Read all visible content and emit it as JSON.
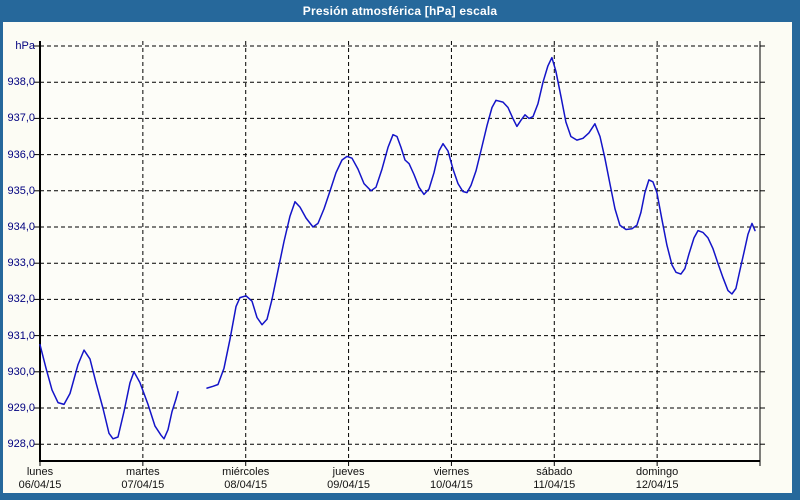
{
  "window": {
    "title": "Presión atmosférica [hPa] escala"
  },
  "colors": {
    "titlebar": "#26689B",
    "frame_border": "#26689B",
    "content_bg": "#fcfcf4",
    "plot_bg": "#fdfdf8",
    "grid": "#000000",
    "axis": "#000000",
    "line": "#1414C8",
    "y_label": "#00007f",
    "x_label": "#111111",
    "title_text": "#ffffff"
  },
  "chart_data": {
    "type": "line",
    "title": "Presión atmosférica [hPa] escala",
    "ylabel": "hPa",
    "grid": "dashed",
    "legend": "none",
    "y_axis": {
      "unit_label": "hPa",
      "ylim": [
        927.5,
        939.2
      ],
      "tick_step": 1.0,
      "ticks": [
        {
          "value": 939,
          "label": "hPa"
        },
        {
          "value": 938,
          "label": "938,0"
        },
        {
          "value": 937,
          "label": "937,0"
        },
        {
          "value": 936,
          "label": "936,0"
        },
        {
          "value": 935,
          "label": "935,0"
        },
        {
          "value": 934,
          "label": "934,0"
        },
        {
          "value": 933,
          "label": "933,0"
        },
        {
          "value": 932,
          "label": "932,0"
        },
        {
          "value": 931,
          "label": "931,0"
        },
        {
          "value": 930,
          "label": "930,0"
        },
        {
          "value": 929,
          "label": "929,0"
        },
        {
          "value": 928,
          "label": "928,0"
        }
      ]
    },
    "x_axis": {
      "span_days": 7,
      "days": [
        {
          "name": "lunes",
          "date": "06/04/15"
        },
        {
          "name": "martes",
          "date": "07/04/15"
        },
        {
          "name": "miércoles",
          "date": "08/04/15"
        },
        {
          "name": "jueves",
          "date": "09/04/15"
        },
        {
          "name": "viernes",
          "date": "10/04/15"
        },
        {
          "name": "sábado",
          "date": "11/04/15"
        },
        {
          "name": "domingo",
          "date": "12/04/15"
        }
      ]
    },
    "series": [
      {
        "name": "Presión atmosférica",
        "unit": "hPa",
        "color": "#1414C8",
        "segments": [
          [
            [
              0.0,
              930.75
            ],
            [
              0.058,
              930.1
            ],
            [
              0.117,
              929.5
            ],
            [
              0.175,
              929.15
            ],
            [
              0.233,
              929.1
            ],
            [
              0.292,
              929.4
            ],
            [
              0.369,
              930.2
            ],
            [
              0.428,
              930.6
            ],
            [
              0.486,
              930.35
            ],
            [
              0.544,
              929.7
            ],
            [
              0.612,
              929.0
            ],
            [
              0.671,
              928.3
            ],
            [
              0.71,
              928.15
            ],
            [
              0.758,
              928.2
            ],
            [
              0.817,
              928.9
            ],
            [
              0.875,
              929.7
            ],
            [
              0.914,
              930.0
            ],
            [
              0.972,
              929.7
            ],
            [
              1.05,
              929.1
            ],
            [
              1.118,
              928.5
            ],
            [
              1.176,
              928.25
            ],
            [
              1.206,
              928.15
            ],
            [
              1.244,
              928.4
            ],
            [
              1.283,
              928.9
            ],
            [
              1.322,
              929.25
            ],
            [
              1.342,
              929.45
            ]
          ],
          [
            [
              1.624,
              929.55
            ],
            [
              1.682,
              929.6
            ],
            [
              1.731,
              929.65
            ],
            [
              1.789,
              930.1
            ],
            [
              1.847,
              930.9
            ],
            [
              1.906,
              931.8
            ],
            [
              1.944,
              932.05
            ],
            [
              2.003,
              932.1
            ],
            [
              2.061,
              931.95
            ],
            [
              2.11,
              931.5
            ],
            [
              2.158,
              931.3
            ],
            [
              2.207,
              931.45
            ],
            [
              2.256,
              932.0
            ],
            [
              2.314,
              932.8
            ],
            [
              2.372,
              933.6
            ],
            [
              2.431,
              934.3
            ],
            [
              2.479,
              934.7
            ],
            [
              2.528,
              934.55
            ],
            [
              2.586,
              934.25
            ],
            [
              2.654,
              934.0
            ],
            [
              2.703,
              934.1
            ],
            [
              2.761,
              934.5
            ],
            [
              2.82,
              935.0
            ],
            [
              2.878,
              935.5
            ],
            [
              2.936,
              935.85
            ],
            [
              2.985,
              935.95
            ],
            [
              3.033,
              935.9
            ],
            [
              3.092,
              935.6
            ],
            [
              3.15,
              935.2
            ],
            [
              3.218,
              935.0
            ],
            [
              3.267,
              935.1
            ],
            [
              3.325,
              935.6
            ],
            [
              3.383,
              936.2
            ],
            [
              3.432,
              936.55
            ],
            [
              3.471,
              936.5
            ],
            [
              3.51,
              936.2
            ],
            [
              3.549,
              935.85
            ],
            [
              3.588,
              935.75
            ],
            [
              3.636,
              935.45
            ],
            [
              3.685,
              935.1
            ],
            [
              3.733,
              934.9
            ],
            [
              3.782,
              935.05
            ],
            [
              3.831,
              935.5
            ],
            [
              3.879,
              936.1
            ],
            [
              3.918,
              936.3
            ],
            [
              3.967,
              936.1
            ],
            [
              4.015,
              935.6
            ],
            [
              4.064,
              935.2
            ],
            [
              4.112,
              934.98
            ],
            [
              4.151,
              934.95
            ],
            [
              4.19,
              935.15
            ],
            [
              4.239,
              935.55
            ],
            [
              4.287,
              936.1
            ],
            [
              4.346,
              936.8
            ],
            [
              4.394,
              937.3
            ],
            [
              4.433,
              937.5
            ],
            [
              4.501,
              937.45
            ],
            [
              4.55,
              937.3
            ],
            [
              4.598,
              937.0
            ],
            [
              4.637,
              936.78
            ],
            [
              4.676,
              936.95
            ],
            [
              4.715,
              937.1
            ],
            [
              4.754,
              937.0
            ],
            [
              4.793,
              937.05
            ],
            [
              4.841,
              937.4
            ],
            [
              4.89,
              938.0
            ],
            [
              4.938,
              938.45
            ],
            [
              4.977,
              938.68
            ],
            [
              5.016,
              938.3
            ],
            [
              5.065,
              937.6
            ],
            [
              5.113,
              936.9
            ],
            [
              5.162,
              936.5
            ],
            [
              5.22,
              936.4
            ],
            [
              5.279,
              936.45
            ],
            [
              5.337,
              936.6
            ],
            [
              5.395,
              936.85
            ],
            [
              5.444,
              936.5
            ],
            [
              5.492,
              935.9
            ],
            [
              5.541,
              935.2
            ],
            [
              5.59,
              934.5
            ],
            [
              5.638,
              934.05
            ],
            [
              5.697,
              933.93
            ],
            [
              5.755,
              933.95
            ],
            [
              5.803,
              934.05
            ],
            [
              5.842,
              934.4
            ],
            [
              5.881,
              934.95
            ],
            [
              5.92,
              935.3
            ],
            [
              5.959,
              935.25
            ],
            [
              5.998,
              934.95
            ],
            [
              6.047,
              934.2
            ],
            [
              6.095,
              933.5
            ],
            [
              6.144,
              932.95
            ],
            [
              6.183,
              932.75
            ],
            [
              6.231,
              932.7
            ],
            [
              6.27,
              932.85
            ],
            [
              6.309,
              933.25
            ],
            [
              6.358,
              933.7
            ],
            [
              6.397,
              933.9
            ],
            [
              6.445,
              933.85
            ],
            [
              6.494,
              933.7
            ],
            [
              6.543,
              933.4
            ],
            [
              6.591,
              933.0
            ],
            [
              6.64,
              932.6
            ],
            [
              6.688,
              932.25
            ],
            [
              6.727,
              932.15
            ],
            [
              6.766,
              932.3
            ],
            [
              6.805,
              932.8
            ],
            [
              6.844,
              933.3
            ],
            [
              6.883,
              933.8
            ],
            [
              6.922,
              934.1
            ],
            [
              6.951,
              933.9
            ]
          ]
        ]
      }
    ]
  }
}
